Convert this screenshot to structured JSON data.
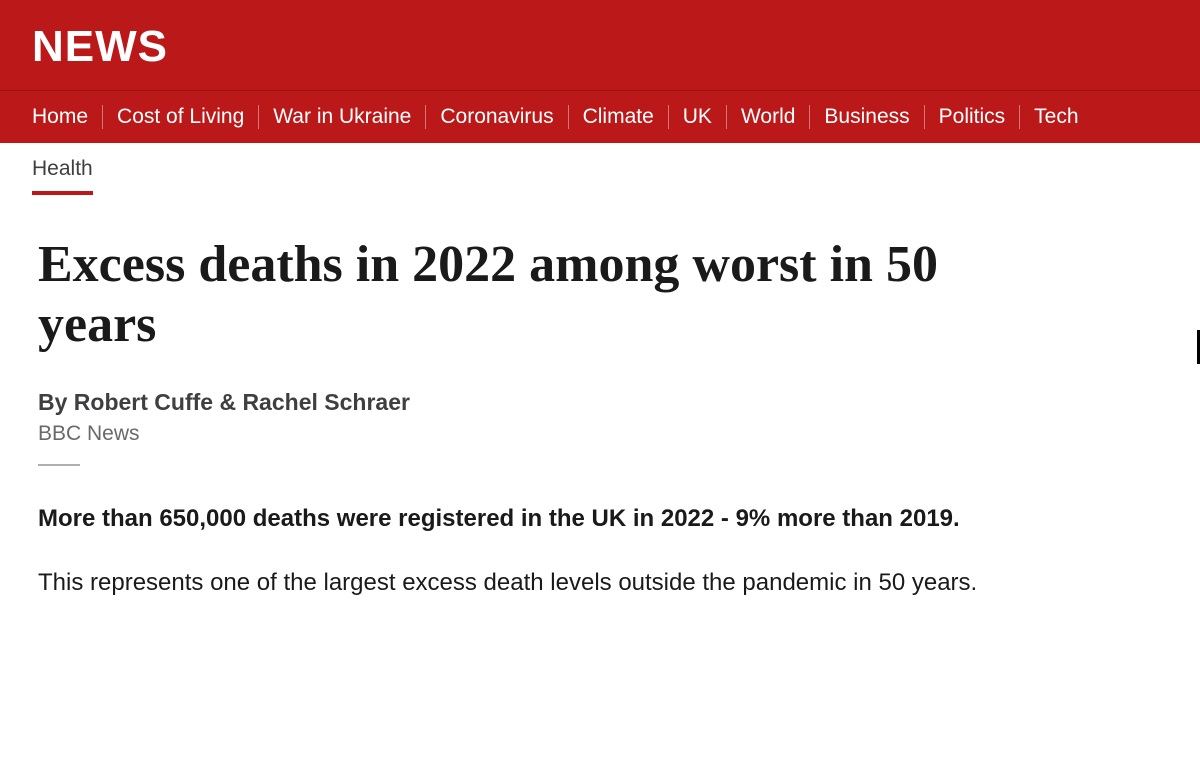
{
  "colors": {
    "brand_red": "#bb1919",
    "nav_divider": "#9e1414",
    "text_dark": "#1a1a1a",
    "text_mid": "#3f3f42",
    "text_muted": "#6a6a6a",
    "separator": "#b0b0b0",
    "background": "#ffffff"
  },
  "banner": {
    "title": "NEWS"
  },
  "nav": {
    "items": [
      "Home",
      "Cost of Living",
      "War in Ukraine",
      "Coronavirus",
      "Climate",
      "UK",
      "World",
      "Business",
      "Politics",
      "Tech"
    ]
  },
  "subnav": {
    "active": "Health"
  },
  "article": {
    "headline": "Excess deaths in 2022 among worst in 50 years",
    "byline": "By Robert Cuffe & Rachel Schraer",
    "source": "BBC News",
    "lead": "More than 650,000 deaths were registered in the UK in 2022 - 9% more than 2019.",
    "body": "This represents one of the largest excess death levels outside the pandemic in 50 years."
  }
}
